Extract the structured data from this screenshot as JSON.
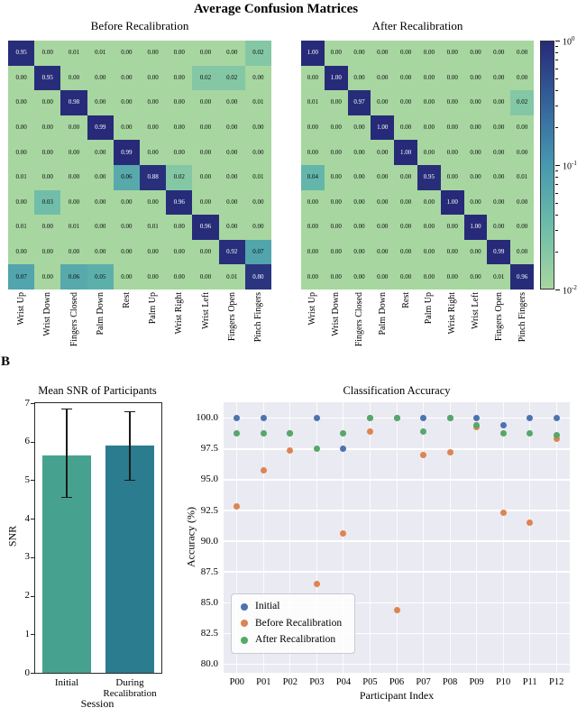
{
  "figure": {
    "title": "Average Confusion Matrices",
    "panel_label": "B"
  },
  "colorbar": {
    "scale": "log",
    "tick_labels": [
      "10^0",
      "10^-1",
      "10^-2"
    ],
    "low_color": "#a7d6a0",
    "mid_color": "#4699af",
    "high_color": "#272a78"
  },
  "chart_data": [
    {
      "type": "heatmap",
      "title": "Before Recalibration",
      "categories": [
        "Wrist Up",
        "Wrist Down",
        "Fingers Closed",
        "Palm Down",
        "Rest",
        "Palm Up",
        "Wrist Right",
        "Wrist Left",
        "Fingers Open",
        "Pinch Fingers"
      ],
      "values": [
        [
          0.95,
          0.0,
          0.01,
          0.01,
          0.0,
          0.0,
          0.0,
          0.0,
          0.0,
          0.02
        ],
        [
          0.0,
          0.95,
          0.0,
          0.0,
          0.0,
          0.0,
          0.0,
          0.02,
          0.02,
          0.0
        ],
        [
          0.0,
          0.0,
          0.98,
          0.0,
          0.0,
          0.0,
          0.0,
          0.0,
          0.0,
          0.01
        ],
        [
          0.0,
          0.0,
          0.0,
          0.99,
          0.0,
          0.0,
          0.0,
          0.0,
          0.0,
          0.0
        ],
        [
          0.0,
          0.0,
          0.0,
          0.0,
          0.99,
          0.0,
          0.0,
          0.0,
          0.0,
          0.0
        ],
        [
          0.01,
          0.0,
          0.0,
          0.0,
          0.06,
          0.88,
          0.02,
          0.0,
          0.0,
          0.01
        ],
        [
          0.0,
          0.03,
          0.0,
          0.0,
          0.0,
          0.0,
          0.96,
          0.0,
          0.0,
          0.0
        ],
        [
          0.01,
          0.0,
          0.01,
          0.0,
          0.0,
          0.01,
          0.0,
          0.96,
          0.0,
          0.0
        ],
        [
          0.0,
          0.0,
          0.0,
          0.0,
          0.0,
          0.0,
          0.0,
          0.0,
          0.92,
          0.07
        ],
        [
          0.07,
          0.0,
          0.06,
          0.05,
          0.0,
          0.0,
          0.0,
          0.0,
          0.01,
          0.8
        ]
      ],
      "vmin": 0.01,
      "vmax": 1.0
    },
    {
      "type": "heatmap",
      "title": "After Recalibration",
      "categories": [
        "Wrist Up",
        "Wrist Down",
        "Fingers Closed",
        "Palm Down",
        "Rest",
        "Palm Up",
        "Wrist Right",
        "Wrist Left",
        "Fingers Open",
        "Pinch Fingers"
      ],
      "values": [
        [
          1.0,
          0.0,
          0.0,
          0.0,
          0.0,
          0.0,
          0.0,
          0.0,
          0.0,
          0.0
        ],
        [
          0.0,
          1.0,
          0.0,
          0.0,
          0.0,
          0.0,
          0.0,
          0.0,
          0.0,
          0.0
        ],
        [
          0.01,
          0.0,
          0.97,
          0.0,
          0.0,
          0.0,
          0.0,
          0.0,
          0.0,
          0.02
        ],
        [
          0.0,
          0.0,
          0.0,
          1.0,
          0.0,
          0.0,
          0.0,
          0.0,
          0.0,
          0.0
        ],
        [
          0.0,
          0.0,
          0.0,
          0.0,
          1.0,
          0.0,
          0.0,
          0.0,
          0.0,
          0.0
        ],
        [
          0.04,
          0.0,
          0.0,
          0.0,
          0.0,
          0.95,
          0.0,
          0.0,
          0.0,
          0.01
        ],
        [
          0.0,
          0.0,
          0.0,
          0.0,
          0.0,
          0.0,
          1.0,
          0.0,
          0.0,
          0.0
        ],
        [
          0.0,
          0.0,
          0.0,
          0.0,
          0.0,
          0.0,
          0.0,
          1.0,
          0.0,
          0.0
        ],
        [
          0.0,
          0.0,
          0.0,
          0.0,
          0.0,
          0.0,
          0.0,
          0.0,
          0.99,
          0.0
        ],
        [
          0.0,
          0.0,
          0.0,
          0.0,
          0.0,
          0.0,
          0.0,
          0.0,
          0.01,
          0.96
        ]
      ],
      "vmin": 0.01,
      "vmax": 1.0
    },
    {
      "type": "bar",
      "title": "Mean SNR of Participants",
      "xlabel": "Session",
      "ylabel": "SNR",
      "ylim": [
        0,
        7
      ],
      "yticks": [
        0,
        1,
        2,
        3,
        4,
        5,
        6,
        7
      ],
      "categories": [
        "Initial",
        "During\nRecalibration"
      ],
      "values": [
        5.65,
        5.9
      ],
      "error_ranges": [
        [
          4.55,
          6.85
        ],
        [
          5.0,
          6.78
        ]
      ],
      "colors": [
        "#46a28e",
        "#2b7c8e"
      ]
    },
    {
      "type": "scatter",
      "title": "Classification Accuracy",
      "xlabel": "Participant Index",
      "ylabel": "Accuracy (%)",
      "ylim": [
        80,
        100
      ],
      "yticks": [
        80.0,
        82.5,
        85.0,
        87.5,
        90.0,
        92.5,
        95.0,
        97.5,
        100.0
      ],
      "categories": [
        "P00",
        "P01",
        "P02",
        "P03",
        "P04",
        "P05",
        "P06",
        "P07",
        "P08",
        "P09",
        "P10",
        "P11",
        "P12"
      ],
      "series": [
        {
          "name": "Initial",
          "color": "#4c72b0",
          "values": [
            100,
            100,
            98.8,
            100,
            97.5,
            100,
            100,
            100,
            100,
            100,
            99.4,
            100,
            100
          ]
        },
        {
          "name": "Before Recalibration",
          "color": "#dd8452",
          "values": [
            92.8,
            95.8,
            97.4,
            86.5,
            90.6,
            98.9,
            84.4,
            97.0,
            97.2,
            99.3,
            92.3,
            91.5,
            98.3
          ]
        },
        {
          "name": "After Recalibration",
          "color": "#55a868",
          "values": [
            98.8,
            98.8,
            98.8,
            97.5,
            98.8,
            100,
            100,
            98.9,
            100,
            99.4,
            98.8,
            98.8,
            98.6
          ]
        }
      ],
      "legend_position": "lower left",
      "grid": true,
      "background": "#eaeaf2"
    }
  ]
}
